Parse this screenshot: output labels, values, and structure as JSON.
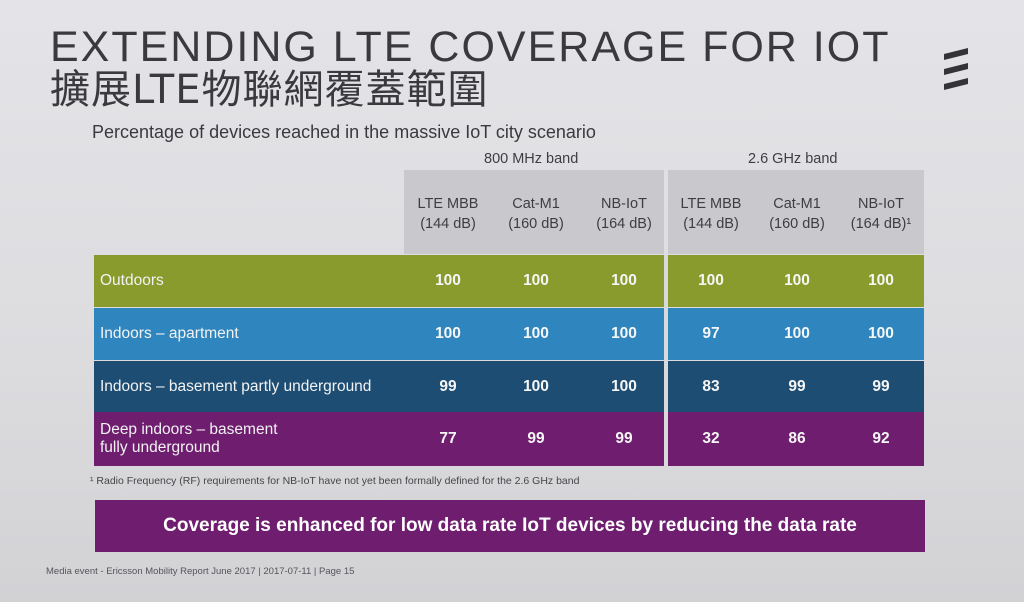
{
  "title": {
    "en": "EXTENDING LTE COVERAGE FOR IOT",
    "zh": "擴展LTE物聯網覆蓋範圍"
  },
  "logo": {
    "icon": "ericsson-logo-icon"
  },
  "subtitle": "Percentage of devices reached in the massive IoT city scenario",
  "bands": [
    "800 MHz band",
    "2.6 GHz band"
  ],
  "columns": [
    {
      "name": "LTE MBB",
      "sub": "(144 dB)"
    },
    {
      "name": "Cat-M1",
      "sub": "(160 dB)"
    },
    {
      "name": "NB-IoT",
      "sub": "(164 dB)"
    },
    {
      "name": "LTE MBB",
      "sub": "(144 dB)"
    },
    {
      "name": "Cat-M1",
      "sub": "(160 dB)"
    },
    {
      "name": "NB-IoT",
      "sub": "(164 dB)¹"
    }
  ],
  "rows": [
    {
      "label": "Outdoors",
      "values": [
        "100",
        "100",
        "100",
        "100",
        "100",
        "100"
      ]
    },
    {
      "label": "Indoors – apartment",
      "values": [
        "100",
        "100",
        "100",
        "97",
        "100",
        "100"
      ]
    },
    {
      "label": "Indoors – basement partly underground",
      "values": [
        "99",
        "100",
        "100",
        "83",
        "99",
        "99"
      ]
    },
    {
      "label": "Deep indoors – basement\nfully underground",
      "values": [
        "77",
        "99",
        "99",
        "32",
        "86",
        "92"
      ]
    }
  ],
  "footnote": "¹ Radio Frequency (RF) requirements for NB-IoT have not yet been formally defined for the 2.6 GHz band",
  "banner": "Coverage is enhanced for low data rate IoT devices by reducing the data rate",
  "footer": "Media event - Ericsson Mobility Report June 2017  |  2017-07-11  |  Page 15",
  "colors": {
    "outdoors": "#8a9b2d",
    "apartment": "#2f86bf",
    "basement": "#1d4d73",
    "deep": "#6e1d6f",
    "banner": "#6e1d6f"
  }
}
